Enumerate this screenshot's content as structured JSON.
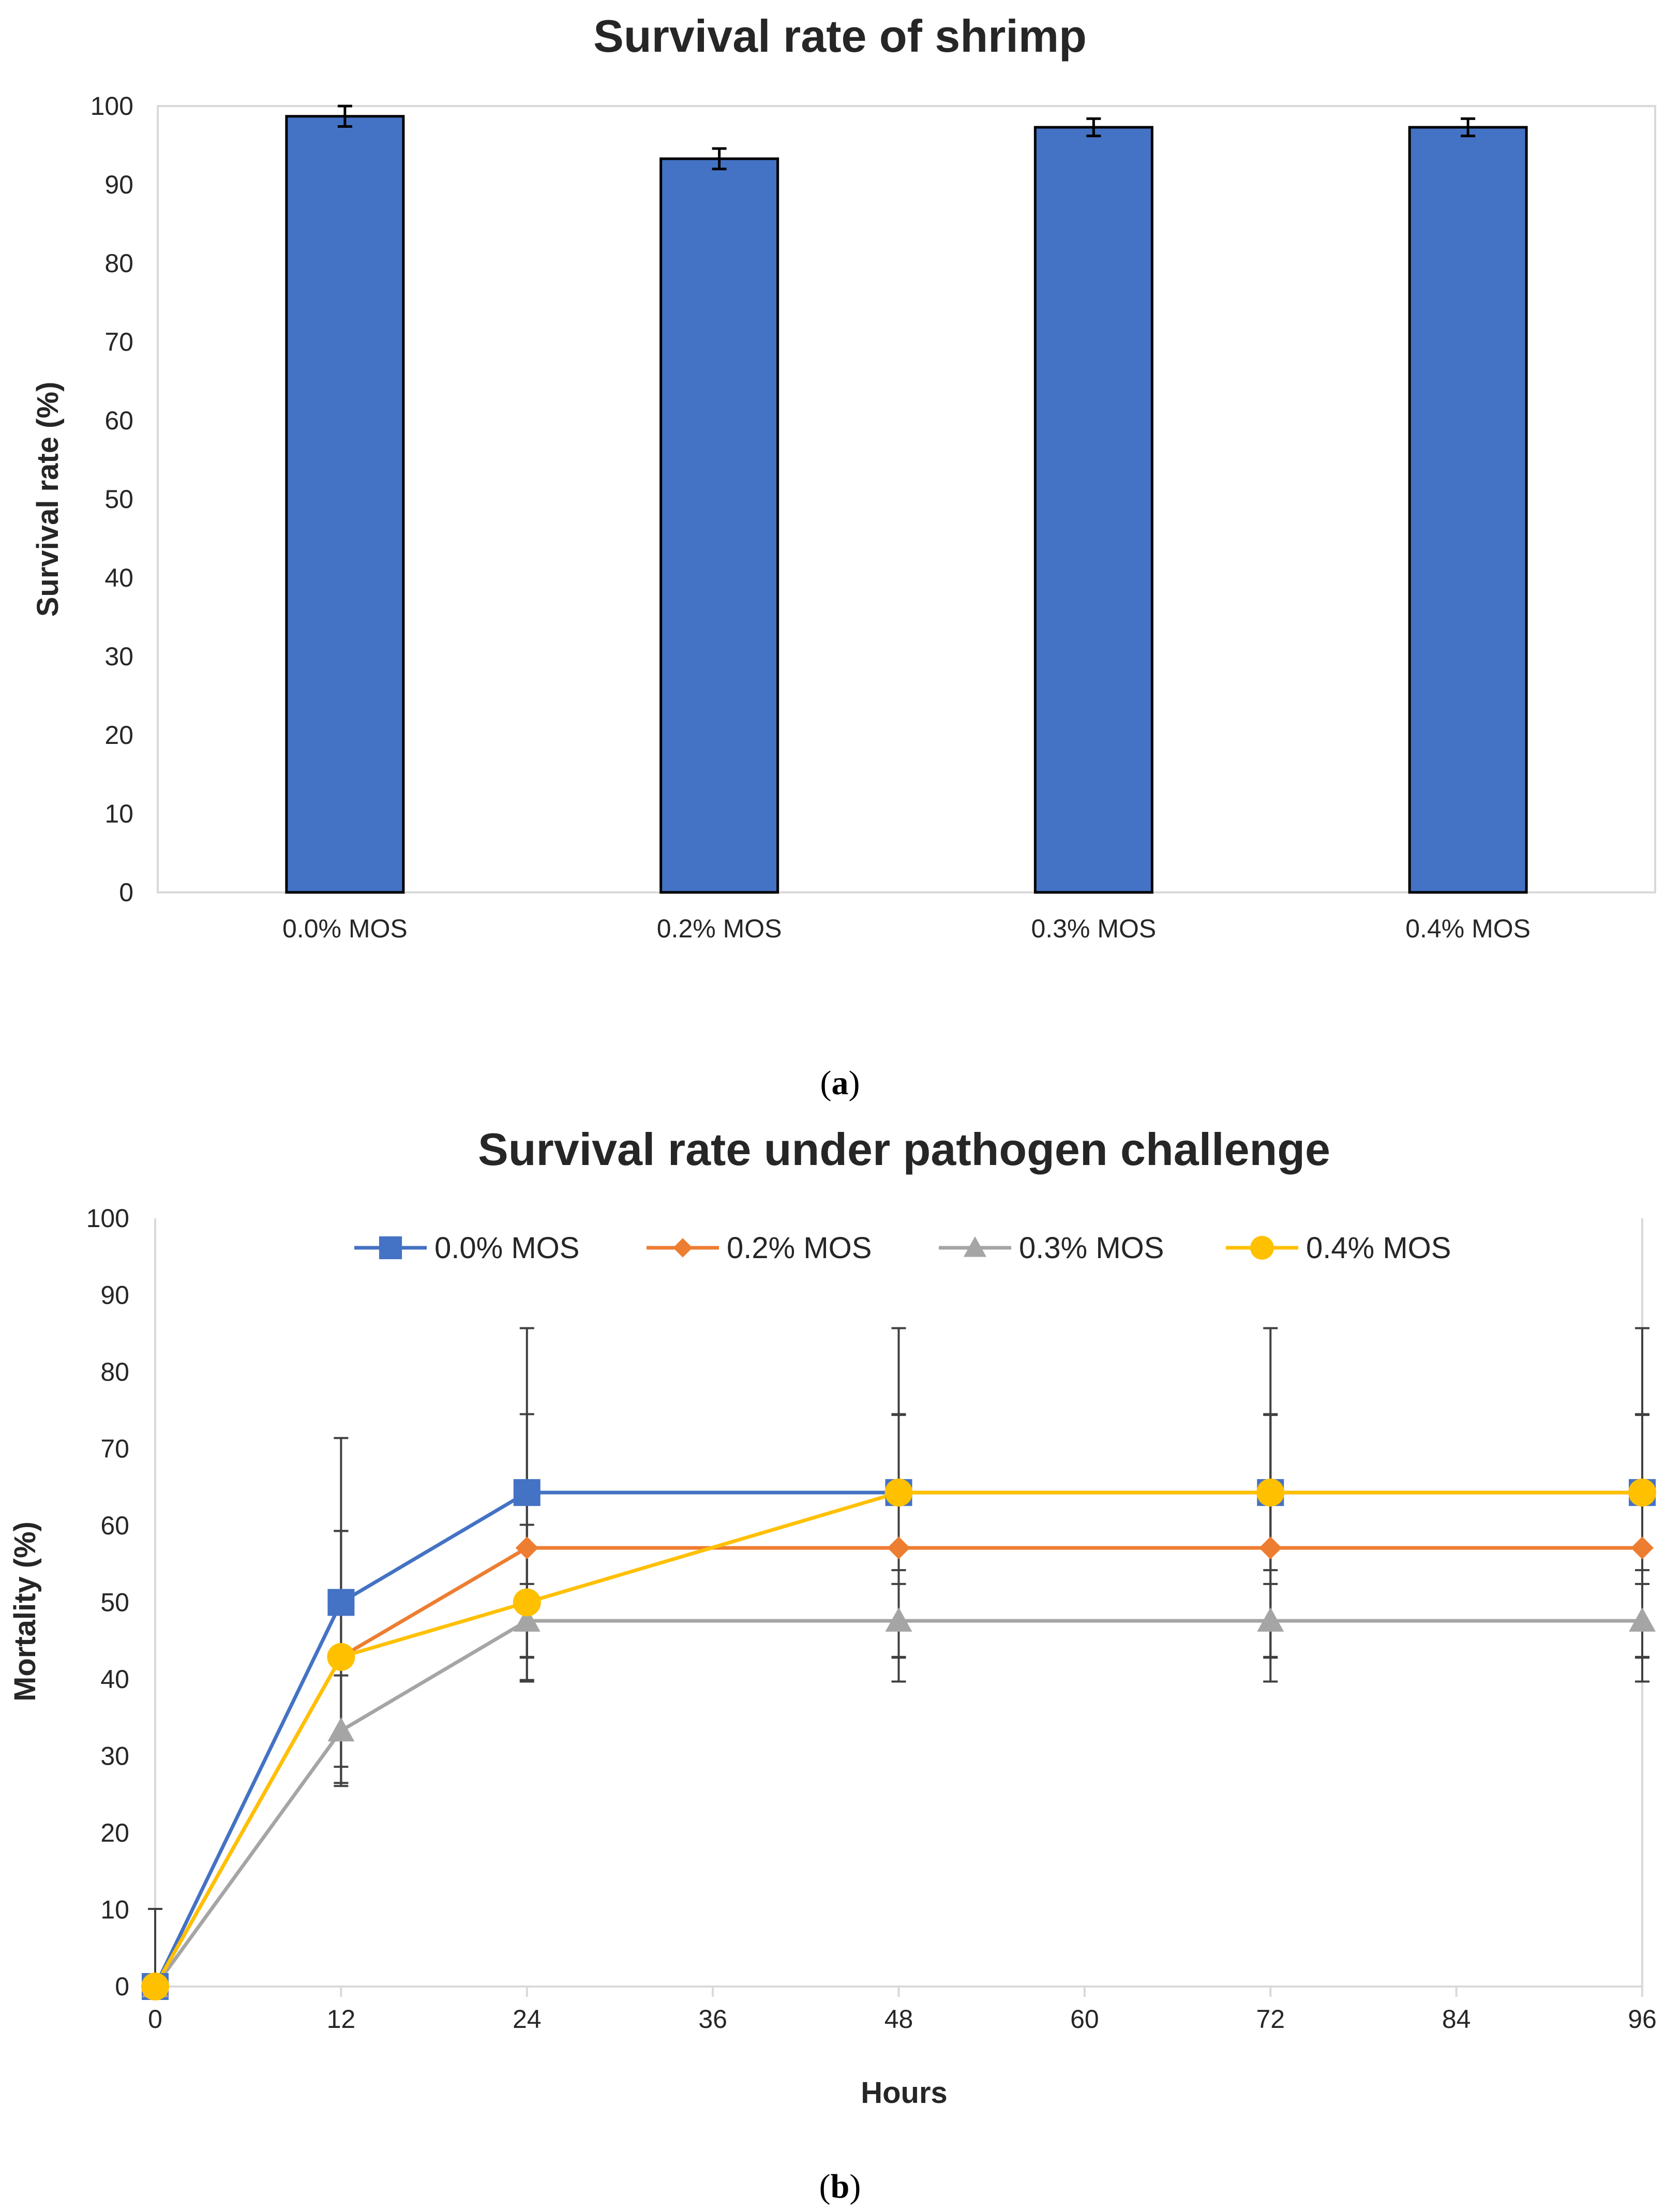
{
  "chart_data": [
    {
      "type": "bar",
      "title": "Survival rate of shrimp",
      "xlabel": "",
      "ylabel": "Survival rate (%)",
      "categories": [
        "0.0% MOS",
        "0.2% MOS",
        "0.3% MOS",
        "0.4% MOS"
      ],
      "values": [
        98.7,
        93.3,
        97.3,
        97.3
      ],
      "errors": [
        1.3,
        1.3,
        1.1,
        1.1
      ],
      "ylim": [
        0,
        100
      ],
      "yticks": [
        0,
        10,
        20,
        30,
        40,
        50,
        60,
        70,
        80,
        90,
        100
      ],
      "bar_color": "#4472C4",
      "caption": "(a)",
      "caption_letter": "a"
    },
    {
      "type": "line",
      "title": "Survival rate under pathogen challenge",
      "xlabel": "Hours",
      "ylabel": "Mortality  (%)",
      "x": [
        0,
        12,
        24,
        48,
        72,
        96
      ],
      "xticks": [
        0,
        12,
        24,
        36,
        48,
        60,
        72,
        84,
        96
      ],
      "xlim": [
        0,
        96
      ],
      "ylim": [
        0,
        100
      ],
      "yticks": [
        0,
        10,
        20,
        30,
        40,
        50,
        60,
        70,
        80,
        90,
        100
      ],
      "legend_position": "top",
      "series": [
        {
          "name": "0.0% MOS",
          "values": [
            0,
            50,
            64.3,
            64.3,
            64.3,
            64.3
          ],
          "errors": [
            10.1,
            21.4,
            21.4,
            21.4,
            21.4,
            21.4
          ],
          "color": "#4472C4",
          "marker": "square"
        },
        {
          "name": "0.2% MOS",
          "values": [
            0,
            42.9,
            57.1,
            57.1,
            57.1,
            57.1
          ],
          "errors": [
            0,
            16.4,
            17.4,
            17.4,
            17.4,
            17.4
          ],
          "color": "#ED7D31",
          "marker": "diamond"
        },
        {
          "name": "0.3% MOS",
          "values": [
            0,
            33.3,
            47.6,
            47.6,
            47.6,
            47.6
          ],
          "errors": [
            0,
            7.2,
            4.8,
            4.8,
            4.8,
            4.8
          ],
          "color": "#A5A5A5",
          "marker": "triangle"
        },
        {
          "name": "0.4% MOS",
          "values": [
            0,
            42.9,
            50,
            64.3,
            64.3,
            64.3
          ],
          "errors": [
            0,
            16.4,
            10.1,
            10.1,
            10.1,
            10.1
          ],
          "color": "#FFC000",
          "marker": "circle"
        }
      ],
      "caption": "(b)",
      "caption_letter": "b"
    }
  ],
  "colors": {
    "axis": "#D9D9D9",
    "text": "#262626",
    "error_bar": "#404040"
  }
}
